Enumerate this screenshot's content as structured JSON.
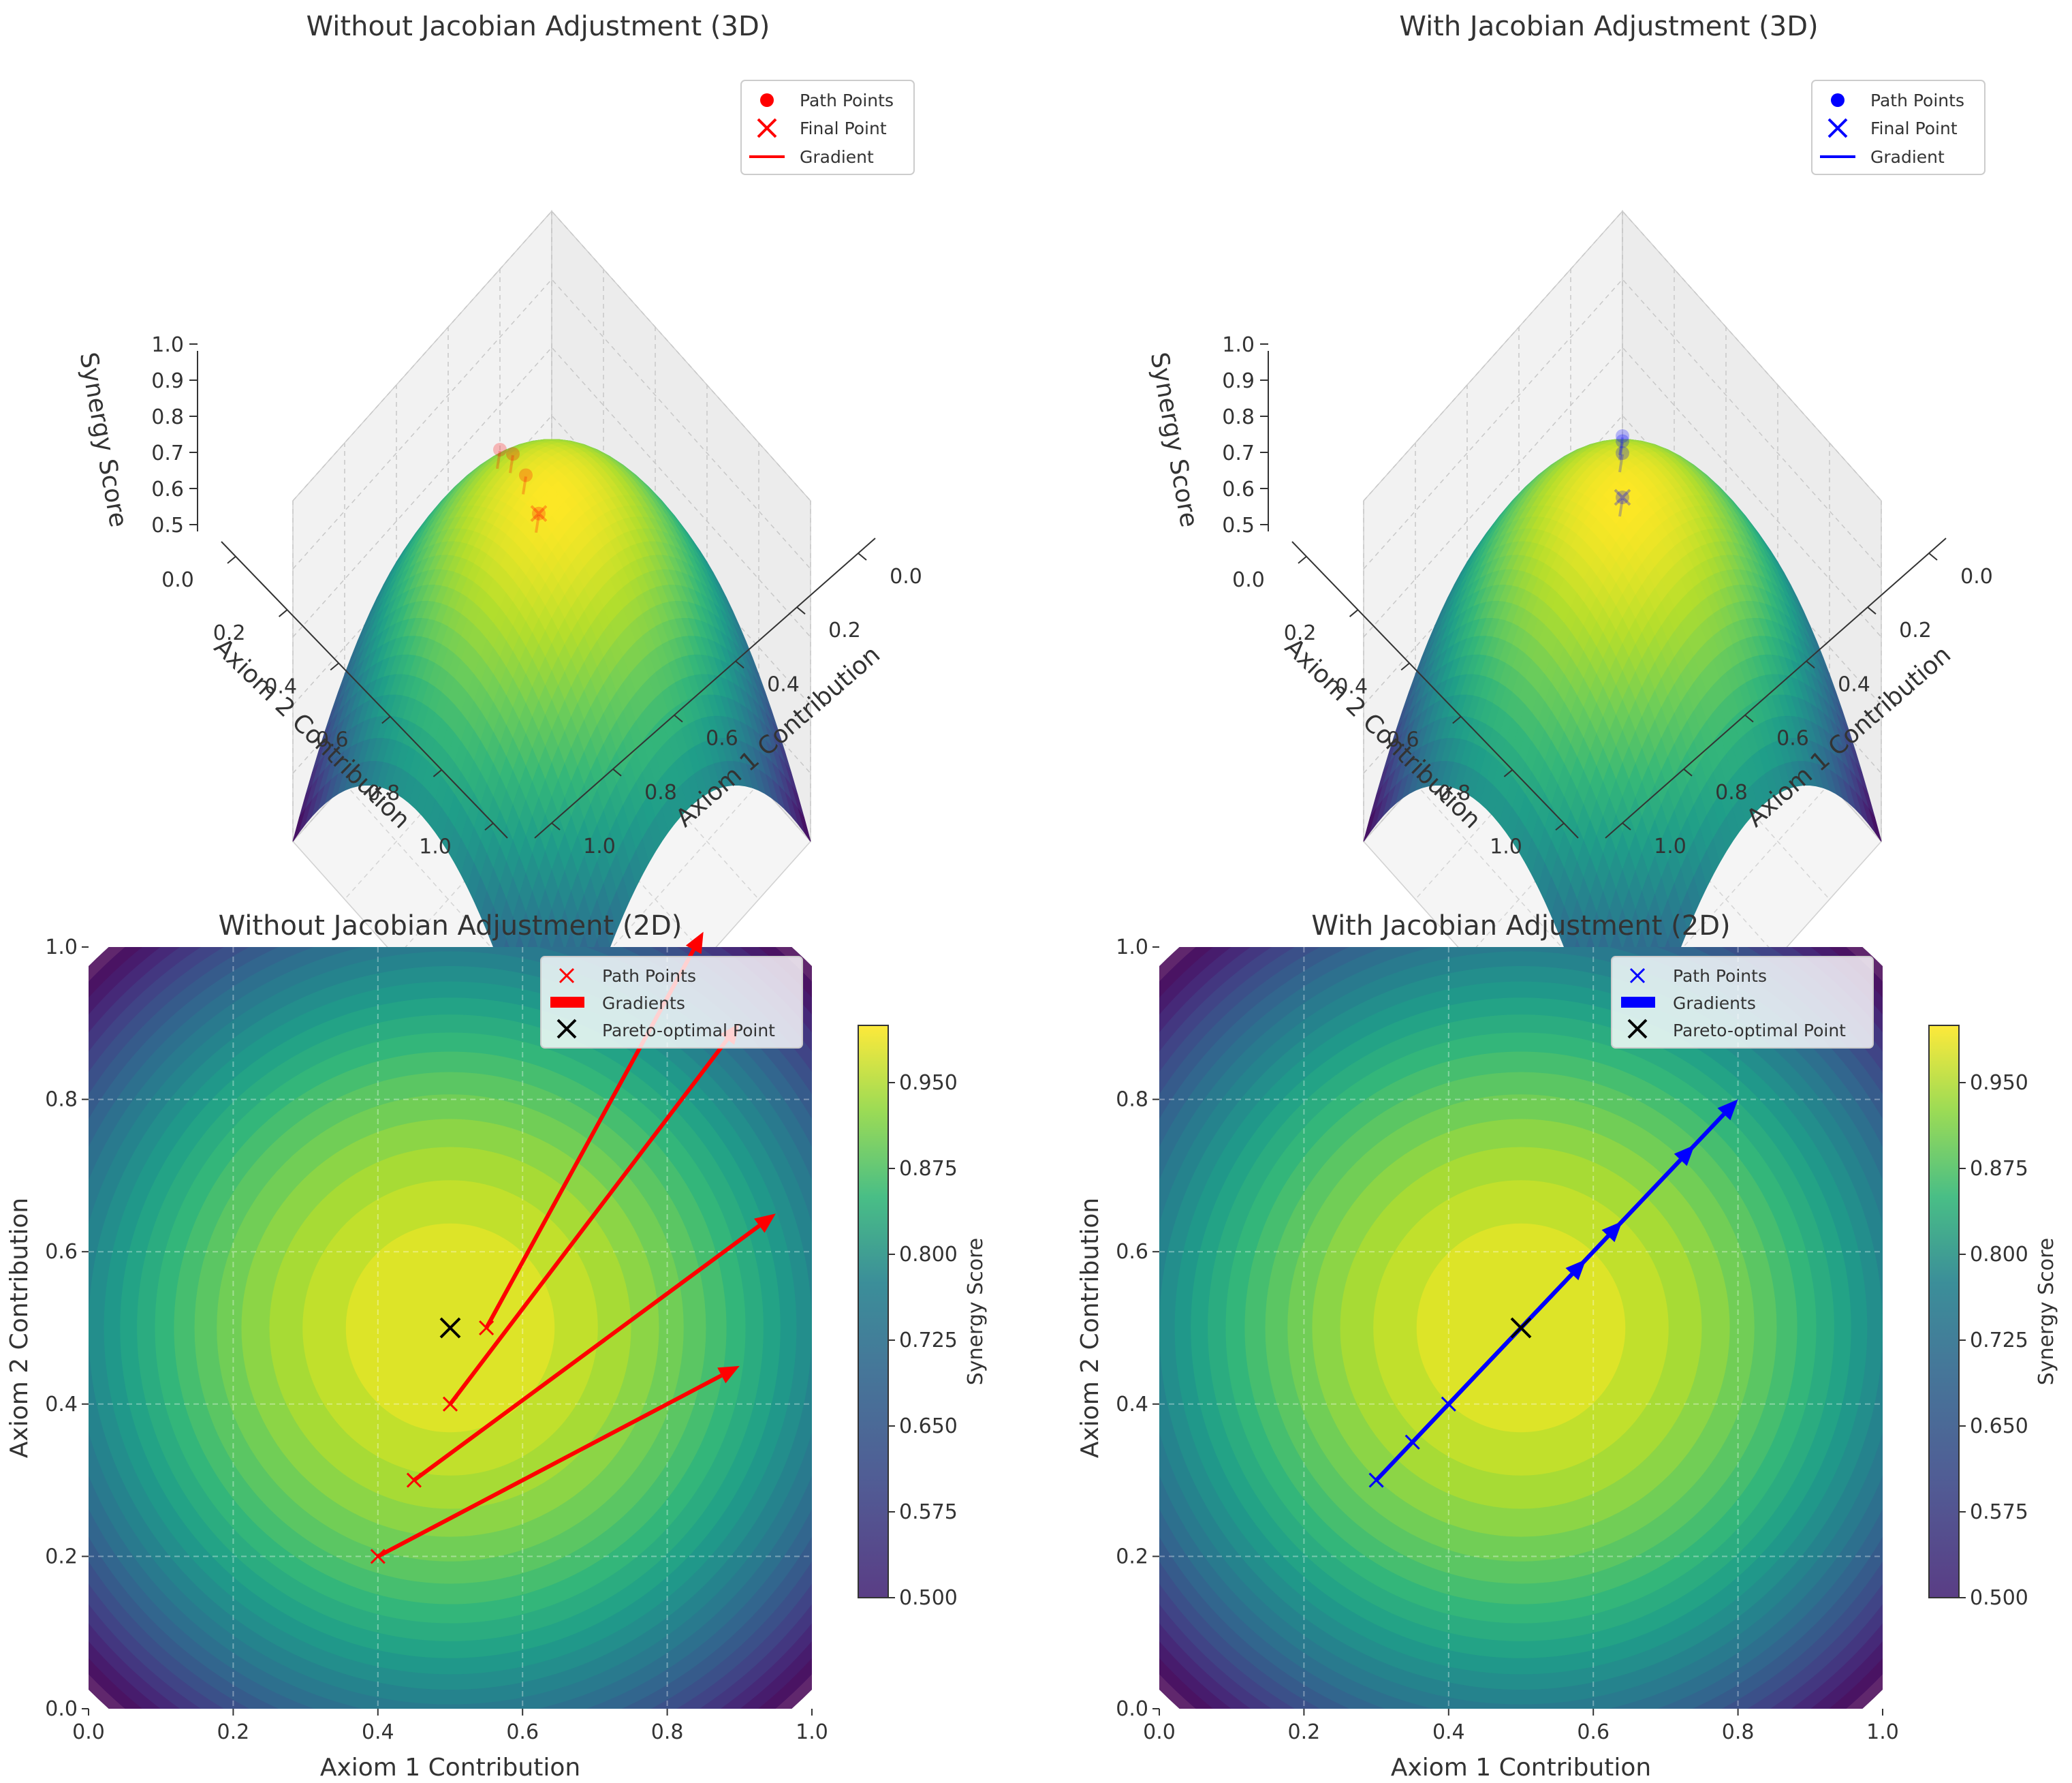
{
  "chart_data": [
    {
      "panel": "top-left",
      "type": "surface3d",
      "title": "Without Jacobian Adjustment (3D)",
      "xlabel": "Axiom 1 Contribution",
      "ylabel": "Axiom 2 Contribution",
      "zlabel": "Synergy Score",
      "xticks": [
        "0.0",
        "0.2",
        "0.4",
        "0.6",
        "0.8",
        "1.0"
      ],
      "yticks": [
        "0.0",
        "0.2",
        "0.4",
        "0.6",
        "0.8",
        "1.0"
      ],
      "zticks": [
        "0.5",
        "0.6",
        "0.7",
        "0.8",
        "0.9",
        "1.0"
      ],
      "xlim": [
        0,
        1
      ],
      "ylim": [
        0,
        1
      ],
      "zlim": [
        0.5,
        1.0
      ],
      "colormap": "viridis",
      "legend": {
        "placement": "upper right",
        "entries": [
          "Path Points",
          "Final Point",
          "Gradient"
        ]
      },
      "accent": "#ff0000",
      "path": [
        [
          0.4,
          0.2
        ],
        [
          0.45,
          0.3
        ],
        [
          0.5,
          0.4
        ],
        [
          0.55,
          0.5
        ]
      ],
      "final_point": [
        0.55,
        0.5
      ]
    },
    {
      "panel": "top-right",
      "type": "surface3d",
      "title": "With Jacobian Adjustment (3D)",
      "xlabel": "Axiom 1 Contribution",
      "ylabel": "Axiom 2 Contribution",
      "zlabel": "Synergy Score",
      "xticks": [
        "0.0",
        "0.2",
        "0.4",
        "0.6",
        "0.8",
        "1.0"
      ],
      "yticks": [
        "0.0",
        "0.2",
        "0.4",
        "0.6",
        "0.8",
        "1.0"
      ],
      "zticks": [
        "0.5",
        "0.6",
        "0.7",
        "0.8",
        "0.9",
        "1.0"
      ],
      "xlim": [
        0,
        1
      ],
      "ylim": [
        0,
        1
      ],
      "zlim": [
        0.5,
        1.0
      ],
      "colormap": "viridis",
      "legend": {
        "placement": "upper right",
        "entries": [
          "Path Points",
          "Final Point",
          "Gradient"
        ]
      },
      "accent": "#0000ff",
      "path": [
        [
          0.3,
          0.3
        ],
        [
          0.35,
          0.35
        ],
        [
          0.4,
          0.4
        ],
        [
          0.5,
          0.5
        ]
      ],
      "final_point": [
        0.5,
        0.5
      ]
    },
    {
      "panel": "bottom-left",
      "type": "contour",
      "title": "Without Jacobian Adjustment (2D)",
      "xlabel": "Axiom 1 Contribution",
      "ylabel": "Axiom 2 Contribution",
      "xlim": [
        0,
        1
      ],
      "ylim": [
        0,
        1
      ],
      "xticks": [
        "0.0",
        "0.2",
        "0.4",
        "0.6",
        "0.8",
        "1.0"
      ],
      "yticks": [
        "0.0",
        "0.2",
        "0.4",
        "0.6",
        "0.8",
        "1.0"
      ],
      "grid": true,
      "colorbar": {
        "label": "Synergy Score",
        "ticks": [
          "0.500",
          "0.575",
          "0.650",
          "0.725",
          "0.800",
          "0.875",
          "0.950"
        ],
        "range": [
          0.5,
          1.0
        ]
      },
      "legend": {
        "placement": "upper right",
        "entries": [
          "Path Points",
          "Gradients",
          "Pareto-optimal Point"
        ]
      },
      "accent": "#ff0000",
      "path_points": [
        [
          0.4,
          0.2
        ],
        [
          0.45,
          0.3
        ],
        [
          0.5,
          0.4
        ],
        [
          0.55,
          0.5
        ]
      ],
      "gradients": [
        {
          "from": [
            0.4,
            0.2
          ],
          "to": [
            0.9,
            0.45
          ]
        },
        {
          "from": [
            0.45,
            0.3
          ],
          "to": [
            0.95,
            0.65
          ]
        },
        {
          "from": [
            0.5,
            0.4
          ],
          "to": [
            0.9,
            0.9
          ]
        },
        {
          "from": [
            0.55,
            0.5
          ],
          "to": [
            0.85,
            1.02
          ]
        }
      ],
      "pareto_point": [
        0.5,
        0.5
      ]
    },
    {
      "panel": "bottom-right",
      "type": "contour",
      "title": "With Jacobian Adjustment (2D)",
      "xlabel": "Axiom 1 Contribution",
      "ylabel": "Axiom 2 Contribution",
      "xlim": [
        0,
        1
      ],
      "ylim": [
        0,
        1
      ],
      "xticks": [
        "0.0",
        "0.2",
        "0.4",
        "0.6",
        "0.8",
        "1.0"
      ],
      "yticks": [
        "0.0",
        "0.2",
        "0.4",
        "0.6",
        "0.8",
        "1.0"
      ],
      "grid": true,
      "colorbar": {
        "label": "Synergy Score",
        "ticks": [
          "0.500",
          "0.575",
          "0.650",
          "0.725",
          "0.800",
          "0.875",
          "0.950"
        ],
        "range": [
          0.5,
          1.0
        ]
      },
      "legend": {
        "placement": "upper right",
        "entries": [
          "Path Points",
          "Gradients",
          "Pareto-optimal Point"
        ]
      },
      "accent": "#0000ff",
      "path_points": [
        [
          0.3,
          0.3
        ],
        [
          0.35,
          0.35
        ],
        [
          0.4,
          0.4
        ],
        [
          0.5,
          0.5
        ]
      ],
      "gradients": [
        {
          "from": [
            0.3,
            0.3
          ],
          "to": [
            0.59,
            0.59
          ]
        },
        {
          "from": [
            0.35,
            0.35
          ],
          "to": [
            0.64,
            0.64
          ]
        },
        {
          "from": [
            0.4,
            0.4
          ],
          "to": [
            0.74,
            0.74
          ]
        },
        {
          "from": [
            0.5,
            0.5
          ],
          "to": [
            0.8,
            0.8
          ]
        }
      ],
      "pareto_point": [
        0.5,
        0.5
      ]
    }
  ]
}
